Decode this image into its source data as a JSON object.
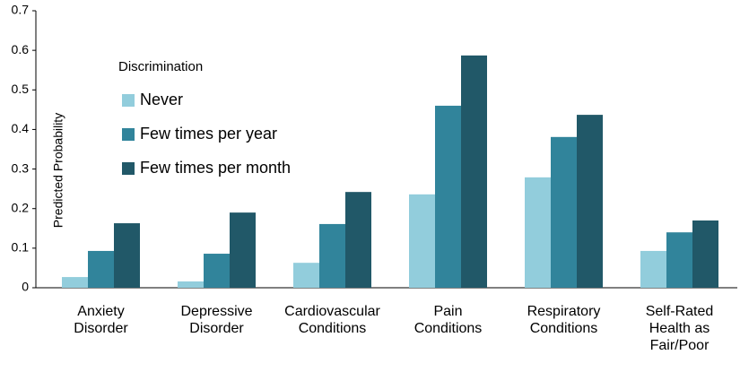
{
  "chart_data": {
    "type": "bar",
    "y_label": "Predicted Probability",
    "legend_title": "Discrimination",
    "categories": [
      "Anxiety\nDisorder",
      "Depressive\nDisorder",
      "Cardiovascular\nConditions",
      "Pain\nConditions",
      "Respiratory\nConditions",
      "Self-Rated\nHealth as\nFair/Poor"
    ],
    "series": [
      {
        "name": "Never",
        "color": "#92cddc",
        "values": [
          0.027,
          0.016,
          0.063,
          0.236,
          0.279,
          0.093
        ]
      },
      {
        "name": "Few times per year",
        "color": "#31849b",
        "values": [
          0.093,
          0.086,
          0.161,
          0.46,
          0.381,
          0.14
        ]
      },
      {
        "name": "Few times per month",
        "color": "#215868",
        "values": [
          0.163,
          0.19,
          0.242,
          0.587,
          0.437,
          0.17
        ]
      }
    ],
    "ylim": [
      0,
      0.7
    ],
    "yticks": [
      0,
      0.1,
      0.2,
      0.3,
      0.4,
      0.5,
      0.6,
      0.7
    ],
    "grid": false,
    "legend": "upper left"
  }
}
